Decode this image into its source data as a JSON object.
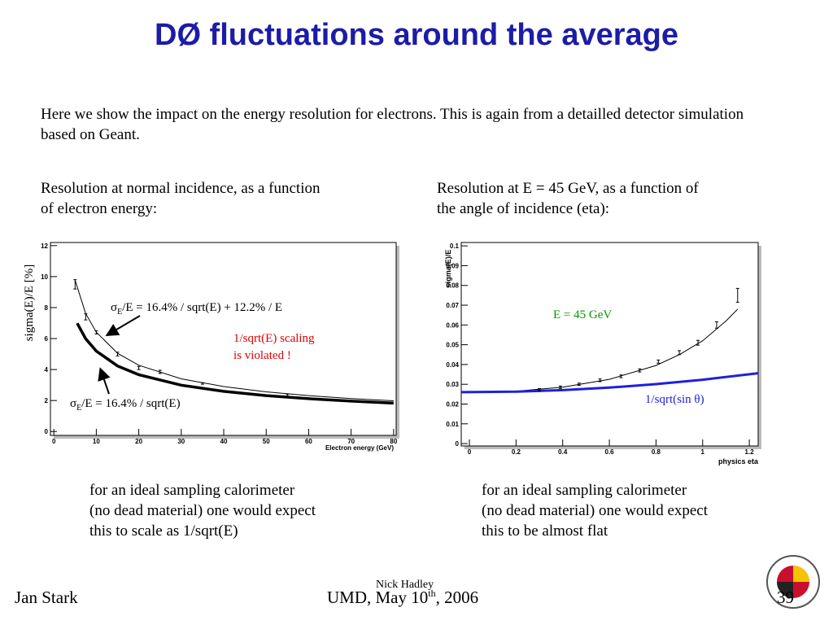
{
  "title": "DØ fluctuations around the average",
  "intro": "Here we show the impact on the energy resolution for electrons. This is again from a detailled detector simulation based on Geant.",
  "left_caption": [
    "Resolution at normal incidence, as a function",
    "of electron energy:"
  ],
  "right_caption": [
    "Resolution at E = 45 GeV, as a function of",
    "the angle of incidence (eta):"
  ],
  "left_note": [
    "for an ideal sampling calorimeter",
    "(no dead material) one would expect",
    "this to scale as 1/sqrt(E)"
  ],
  "right_note": [
    "for an ideal sampling calorimeter",
    "(no dead material) one would expect",
    "this to be almost flat"
  ],
  "footer": {
    "left": "Jan Stark",
    "center": [
      "UMD, May 10",
      "th",
      ", 2006"
    ],
    "overlay": "Nick Hadley",
    "page": "39"
  },
  "chart_data": [
    {
      "type": "scatter",
      "x_label": "Electron energy (GeV)",
      "y_label": "sigma(E)/E   [%]",
      "xlim": [
        -0.8,
        80.6
      ],
      "ylim": [
        -0.25,
        12.2
      ],
      "xticks": [
        0,
        10,
        20,
        30,
        40,
        50,
        60,
        70,
        80
      ],
      "yticks": [
        0,
        2,
        4,
        6,
        8,
        10,
        12
      ],
      "points": {
        "x": [
          5,
          7.5,
          10,
          15,
          20,
          25,
          35,
          55
        ],
        "values": [
          9.5,
          7.4,
          6.4,
          5.0,
          4.1,
          3.85,
          3.1,
          2.35
        ],
        "errors": [
          0.3,
          0.2,
          0.1,
          0.12,
          0.1,
          0.1,
          0.05,
          0.06
        ]
      },
      "curves": [
        {
          "color": "#000000",
          "line_width": 1,
          "x": [
            5,
            7.5,
            10,
            15,
            20,
            30,
            40,
            50,
            60,
            70,
            80
          ],
          "values": [
            9.77,
            7.62,
            6.41,
            5.05,
            4.28,
            3.4,
            2.9,
            2.56,
            2.32,
            2.13,
            1.98
          ]
        },
        {
          "color": "#000000",
          "line_width": 3.5,
          "x": [
            5.5,
            7.5,
            10,
            15,
            20,
            30,
            40,
            50,
            60,
            70,
            80
          ],
          "values": [
            6.99,
            5.99,
            5.19,
            4.23,
            3.67,
            2.99,
            2.59,
            2.32,
            2.12,
            1.96,
            1.83
          ]
        }
      ],
      "fit_label": [
        "σ",
        "E",
        "/E = 16.4% / sqrt(E)  +  12.2% / E"
      ],
      "scaling_label": [
        "σ",
        "E",
        "/E = 16.4% / sqrt(E)"
      ],
      "note": [
        "1/sqrt(E) scaling",
        "is violated !"
      ],
      "note_color": "#e00000"
    },
    {
      "type": "scatter",
      "x_label": "physics eta",
      "y_label": "sigma(E)/E",
      "xlim": [
        -0.035,
        1.238
      ],
      "ylim": [
        -0.0012,
        0.1017
      ],
      "xticks": [
        0,
        0.2,
        0.4,
        0.6,
        0.8,
        1,
        1.2
      ],
      "yticks": [
        0,
        0.01,
        0.02,
        0.03,
        0.04,
        0.05,
        0.06,
        0.07,
        0.08,
        0.09,
        0.1
      ],
      "points": {
        "x": [
          0.3,
          0.39,
          0.47,
          0.56,
          0.65,
          0.73,
          0.81,
          0.9,
          0.98,
          1.06,
          1.15
        ],
        "values": [
          0.0272,
          0.0285,
          0.03,
          0.032,
          0.034,
          0.037,
          0.0415,
          0.046,
          0.051,
          0.06,
          0.075
        ],
        "errors": [
          0.0006,
          0.0006,
          0.0006,
          0.0007,
          0.0007,
          0.0008,
          0.0008,
          0.001,
          0.0012,
          0.0016,
          0.0035
        ]
      },
      "curves": [
        {
          "color": "#000000",
          "line_width": 1,
          "x": [
            0,
            0.2,
            0.4,
            0.6,
            0.8,
            0.9,
            1.0,
            1.1,
            1.15
          ],
          "values": [
            0.026,
            0.0265,
            0.0285,
            0.0325,
            0.0395,
            0.045,
            0.052,
            0.062,
            0.068
          ]
        },
        {
          "color": "#1f1fe0",
          "line_width": 3,
          "x": [
            -0.035,
            0.2,
            0.4,
            0.6,
            0.8,
            1.0,
            1.238
          ],
          "values": [
            0.026,
            0.02626,
            0.02703,
            0.0283,
            0.0301,
            0.0323,
            0.0356
          ]
        }
      ],
      "energy_label": "E = 45 GeV",
      "energy_color": "#009900",
      "curve_label": "1/sqrt(sin θ)",
      "curve_label_color": "#1f1fe0"
    }
  ]
}
